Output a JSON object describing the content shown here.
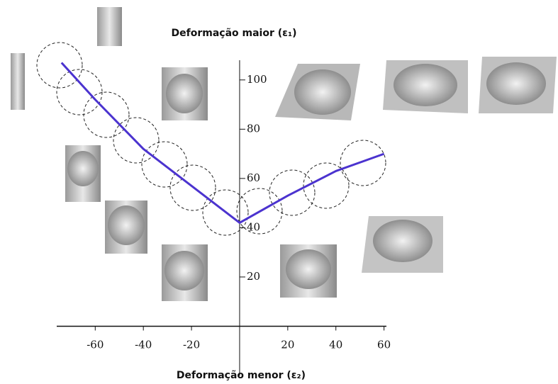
{
  "chart_data": {
    "type": "line",
    "y_label": "Deformação maior (ε₁)",
    "x_label": "Deformação menor (ε₂)",
    "x": [
      -74,
      -60,
      -40,
      -20,
      0,
      20,
      40,
      60
    ],
    "series": [
      {
        "color": "#4b33cf",
        "values": [
          107,
          92,
          72,
          57,
          42,
          53,
          63,
          70
        ]
      }
    ],
    "xlim": [
      -76,
      61
    ],
    "ylim": [
      -20,
      108
    ],
    "xticks": [
      -60,
      -40,
      -20,
      20,
      40,
      60
    ],
    "yticks": [
      20,
      40,
      60,
      80,
      100
    ]
  }
}
